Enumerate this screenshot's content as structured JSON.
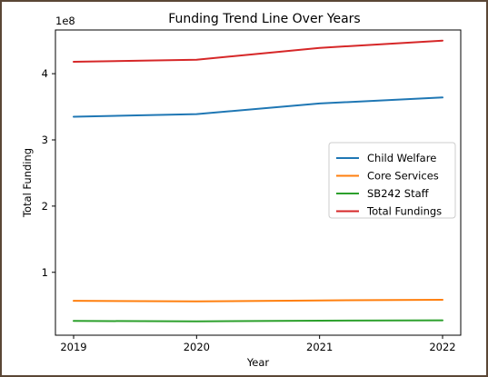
{
  "chart_data": {
    "type": "line",
    "title": "Funding Trend Line Over Years",
    "xlabel": "Year",
    "ylabel": "Total Funding",
    "y_offset_label": "1e8",
    "x": [
      2019,
      2020,
      2021,
      2022
    ],
    "xticks": [
      "2019",
      "2020",
      "2021",
      "2022"
    ],
    "yticks": [
      1,
      2,
      3,
      4
    ],
    "y_scale": 100000000,
    "ylim": [
      0.05,
      4.66
    ],
    "grid": false,
    "legend_position": "center-right",
    "series": [
      {
        "name": "Child Welfare",
        "color": "#1f77b4",
        "values": [
          3.35,
          3.39,
          3.55,
          3.64
        ]
      },
      {
        "name": "Core Services",
        "color": "#ff7f0e",
        "values": [
          0.57,
          0.56,
          0.575,
          0.585
        ]
      },
      {
        "name": "SB242 Staff",
        "color": "#2ca02c",
        "values": [
          0.265,
          0.26,
          0.27,
          0.275
        ]
      },
      {
        "name": "Total Fundings",
        "color": "#d62728",
        "values": [
          4.18,
          4.21,
          4.39,
          4.5
        ]
      }
    ]
  }
}
